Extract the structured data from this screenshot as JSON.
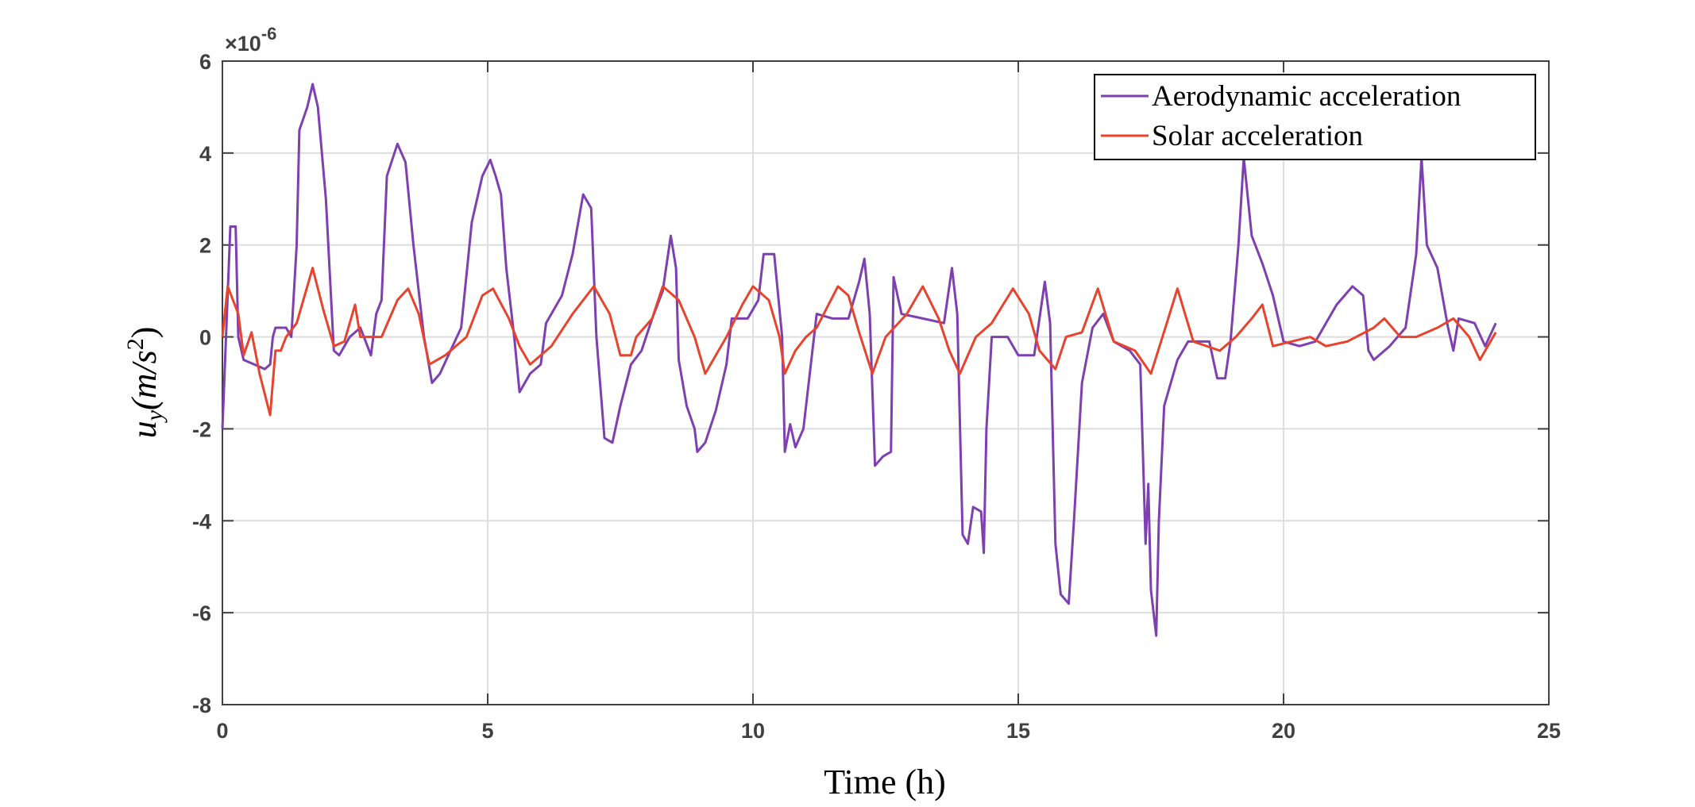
{
  "chart_data": {
    "type": "line",
    "xlabel": "Time (h)",
    "ylabel_parts": [
      "u",
      "y",
      "(m/s",
      "2",
      ")"
    ],
    "y_multiplier": [
      "×10",
      "-6"
    ],
    "xlim": [
      0,
      25
    ],
    "xticks": [
      0,
      5,
      10,
      15,
      20,
      25
    ],
    "ylim": [
      -8,
      6
    ],
    "yticks": [
      -8,
      -6,
      -4,
      -2,
      0,
      2,
      4,
      6
    ],
    "grid": true,
    "legend_position": "upper-right",
    "series": [
      {
        "name": "Aerodynamic acceleration",
        "color": "#7e3fb0",
        "x": [
          0,
          0.15,
          0.25,
          0.3,
          0.4,
          0.6,
          0.8,
          0.9,
          0.95,
          1.0,
          1.2,
          1.3,
          1.4,
          1.45,
          1.6,
          1.7,
          1.8,
          1.95,
          2.1,
          2.2,
          2.4,
          2.6,
          2.8,
          2.9,
          3.0,
          3.1,
          3.3,
          3.45,
          3.6,
          3.8,
          3.95,
          4.1,
          4.3,
          4.5,
          4.7,
          4.9,
          5.05,
          5.15,
          5.25,
          5.35,
          5.5,
          5.6,
          5.8,
          6.0,
          6.1,
          6.4,
          6.6,
          6.8,
          6.95,
          7.05,
          7.2,
          7.35,
          7.5,
          7.7,
          7.9,
          8.1,
          8.3,
          8.45,
          8.55,
          8.6,
          8.75,
          8.9,
          8.95,
          9.1,
          9.3,
          9.5,
          9.6,
          9.9,
          10.1,
          10.2,
          10.4,
          10.55,
          10.6,
          10.7,
          10.8,
          10.95,
          11.1,
          11.2,
          11.5,
          11.8,
          12.0,
          12.1,
          12.2,
          12.3,
          12.45,
          12.6,
          12.65,
          12.8,
          13.2,
          13.6,
          13.75,
          13.85,
          13.95,
          14.05,
          14.15,
          14.3,
          14.35,
          14.4,
          14.5,
          14.8,
          15.0,
          15.3,
          15.4,
          15.5,
          15.6,
          15.7,
          15.8,
          15.95,
          16.05,
          16.2,
          16.4,
          16.6,
          16.8,
          17.1,
          17.3,
          17.4,
          17.45,
          17.5,
          17.6,
          17.65,
          17.75,
          18.0,
          18.2,
          18.6,
          18.75,
          18.9,
          19.0,
          19.15,
          19.25,
          19.4,
          19.6,
          19.8,
          20.0,
          20.3,
          20.6,
          20.75,
          21.0,
          21.3,
          21.5,
          21.6,
          21.7,
          22.0,
          22.3,
          22.5,
          22.6,
          22.7,
          22.9,
          23.1,
          23.2,
          23.3,
          23.6,
          23.8,
          24.0
        ],
        "values": [
          -2,
          2.4,
          2.4,
          0,
          -0.5,
          -0.6,
          -0.7,
          -0.6,
          0,
          0.2,
          0.2,
          0,
          2,
          4.5,
          5,
          5.5,
          5,
          3,
          -0.3,
          -0.4,
          0,
          0.2,
          -0.4,
          0.5,
          0.8,
          3.5,
          4.2,
          3.8,
          2,
          0,
          -1,
          -0.8,
          -0.3,
          0.2,
          2.5,
          3.5,
          3.85,
          3.5,
          3.1,
          1.5,
          0,
          -1.2,
          -0.8,
          -0.6,
          0.3,
          0.9,
          1.8,
          3.1,
          2.8,
          0,
          -2.2,
          -2.3,
          -1.5,
          -0.6,
          -0.3,
          0.4,
          1,
          2.2,
          1.5,
          -0.5,
          -1.5,
          -2,
          -2.5,
          -2.3,
          -1.6,
          -0.6,
          0.4,
          0.4,
          0.8,
          1.8,
          1.8,
          0,
          -2.5,
          -1.9,
          -2.4,
          -2,
          -0.5,
          0.5,
          0.4,
          0.4,
          1.2,
          1.7,
          0.5,
          -2.8,
          -2.6,
          -2.5,
          1.3,
          0.5,
          0.4,
          0.3,
          1.5,
          0.5,
          -4.3,
          -4.5,
          -3.7,
          -3.8,
          -4.7,
          -2,
          0,
          0,
          -0.4,
          -0.4,
          0.4,
          1.2,
          0.3,
          -4.5,
          -5.6,
          -5.8,
          -4,
          -1,
          0.2,
          0.5,
          -0.1,
          -0.3,
          -0.6,
          -4.5,
          -3.2,
          -5.5,
          -6.5,
          -4,
          -1.5,
          -0.5,
          -0.1,
          -0.1,
          -0.9,
          -0.9,
          -0.1,
          2,
          3.9,
          2.2,
          1.6,
          0.9,
          -0.1,
          -0.2,
          -0.1,
          0.2,
          0.7,
          1.1,
          0.9,
          -0.3,
          -0.5,
          -0.2,
          0.2,
          1.8,
          3.9,
          2,
          1.5,
          0.2,
          -0.3,
          0.4,
          0.3,
          -0.2,
          0.3
        ]
      },
      {
        "name": "Solar acceleration",
        "color": "#e8432d",
        "x": [
          0,
          0.1,
          0.3,
          0.4,
          0.55,
          0.7,
          0.9,
          1.0,
          1.1,
          1.2,
          1.4,
          1.7,
          1.9,
          2.1,
          2.3,
          2.5,
          2.6,
          2.9,
          3.0,
          3.3,
          3.5,
          3.7,
          3.9,
          4.2,
          4.6,
          4.9,
          5.1,
          5.4,
          5.6,
          5.8,
          6.2,
          6.6,
          7.0,
          7.3,
          7.5,
          7.7,
          7.8,
          8.1,
          8.3,
          8.6,
          8.9,
          9.1,
          9.3,
          9.5,
          9.8,
          10.0,
          10.3,
          10.5,
          10.6,
          10.8,
          11.0,
          11.2,
          11.6,
          11.8,
          12.0,
          12.25,
          12.5,
          12.9,
          13.2,
          13.5,
          13.7,
          13.9,
          14.2,
          14.5,
          14.9,
          15.2,
          15.4,
          15.7,
          15.9,
          16.2,
          16.5,
          16.8,
          17.2,
          17.5,
          17.8,
          18.0,
          18.3,
          18.8,
          19.1,
          19.4,
          19.6,
          19.8,
          20.5,
          20.8,
          21.2,
          21.7,
          21.9,
          22.2,
          22.5,
          22.9,
          23.2,
          23.5,
          23.7,
          24.0
        ],
        "values": [
          0,
          1.1,
          0.5,
          -0.4,
          0.1,
          -0.8,
          -1.7,
          -0.3,
          -0.3,
          0,
          0.3,
          1.5,
          0.6,
          -0.2,
          -0.1,
          0.7,
          0,
          0,
          0,
          0.8,
          1.05,
          0.5,
          -0.6,
          -0.4,
          0,
          0.9,
          1.05,
          0.4,
          -0.2,
          -0.6,
          -0.2,
          0.5,
          1.1,
          0.5,
          -0.4,
          -0.4,
          0,
          0.4,
          1.1,
          0.8,
          0,
          -0.8,
          -0.4,
          0,
          0.7,
          1.1,
          0.8,
          0,
          -0.8,
          -0.3,
          0,
          0.2,
          1.1,
          0.9,
          0.1,
          -0.8,
          0,
          0.5,
          1.1,
          0.4,
          -0.3,
          -0.8,
          0,
          0.3,
          1.05,
          0.5,
          -0.3,
          -0.7,
          0,
          0.1,
          1.05,
          -0.1,
          -0.3,
          -0.8,
          0.3,
          1.05,
          -0.1,
          -0.3,
          0,
          0.4,
          0.7,
          -0.2,
          0,
          -0.2,
          -0.1,
          0.2,
          0.4,
          0,
          0,
          0.2,
          0.4,
          0,
          -0.5,
          0.1
        ]
      }
    ]
  }
}
